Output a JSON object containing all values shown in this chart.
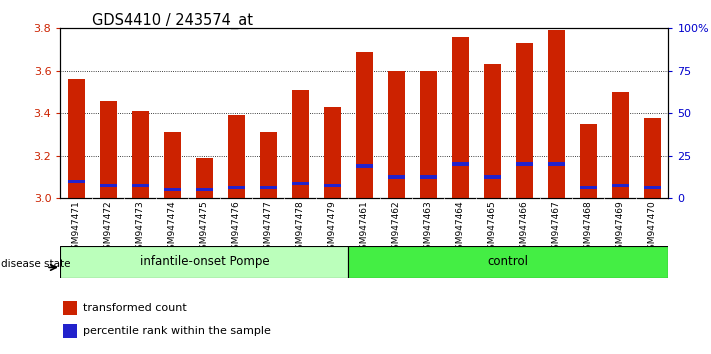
{
  "title": "GDS4410 / 243574_at",
  "samples": [
    "GSM947471",
    "GSM947472",
    "GSM947473",
    "GSM947474",
    "GSM947475",
    "GSM947476",
    "GSM947477",
    "GSM947478",
    "GSM947479",
    "GSM947461",
    "GSM947462",
    "GSM947463",
    "GSM947464",
    "GSM947465",
    "GSM947466",
    "GSM947467",
    "GSM947468",
    "GSM947469",
    "GSM947470"
  ],
  "red_values": [
    3.56,
    3.46,
    3.41,
    3.31,
    3.19,
    3.39,
    3.31,
    3.51,
    3.43,
    3.69,
    3.6,
    3.6,
    3.76,
    3.63,
    3.73,
    3.79,
    3.35,
    3.5,
    3.38
  ],
  "blue_values": [
    3.08,
    3.06,
    3.06,
    3.04,
    3.04,
    3.05,
    3.05,
    3.07,
    3.06,
    3.15,
    3.1,
    3.1,
    3.16,
    3.1,
    3.16,
    3.16,
    3.05,
    3.06,
    3.05
  ],
  "blue_heights": [
    0.012,
    0.012,
    0.012,
    0.012,
    0.012,
    0.012,
    0.012,
    0.012,
    0.012,
    0.018,
    0.015,
    0.015,
    0.018,
    0.015,
    0.018,
    0.018,
    0.012,
    0.012,
    0.012
  ],
  "ymin": 3.0,
  "ymax": 3.8,
  "yticks": [
    3.0,
    3.2,
    3.4,
    3.6,
    3.8
  ],
  "right_yticks": [
    0,
    25,
    50,
    75,
    100
  ],
  "right_yticklabels": [
    "0",
    "25",
    "50",
    "75",
    "100%"
  ],
  "group1_label": "infantile-onset Pompe",
  "group2_label": "control",
  "group1_count": 9,
  "group2_count": 10,
  "bar_color": "#cc2200",
  "blue_color": "#2222cc",
  "plot_bg": "#ffffff",
  "group1_bg": "#bbffbb",
  "group2_bg": "#44ee44",
  "left_tick_color": "#cc2200",
  "right_tick_color": "#0000cc",
  "bar_width": 0.55,
  "disease_state_label": "disease state"
}
